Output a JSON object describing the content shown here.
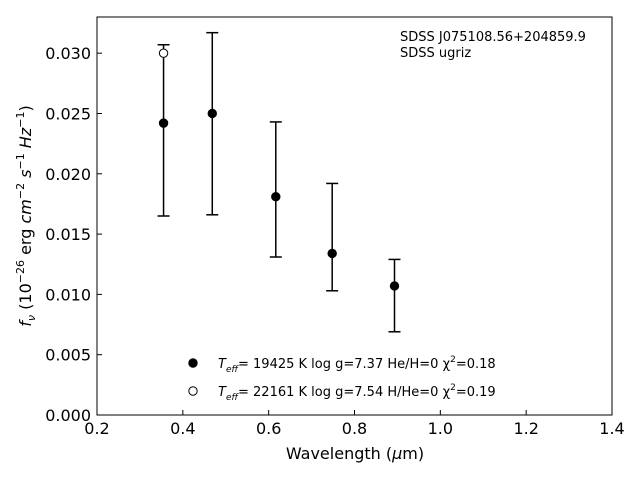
{
  "chart_data": {
    "type": "scatter",
    "xlabel": "Wavelength (μm)",
    "ylabel": "f_ν (10^-26 erg cm^-2 s^-1 Hz^-1)",
    "xlim": [
      0.2,
      1.4
    ],
    "ylim": [
      0.0,
      0.033
    ],
    "x_ticks": [
      0.2,
      0.4,
      0.6,
      0.8,
      1.0,
      1.2,
      1.4
    ],
    "x_tick_labels": [
      "0.2",
      "0.4",
      "0.6",
      "0.8",
      "1.0",
      "1.2",
      "1.4"
    ],
    "y_ticks": [
      0.0,
      0.005,
      0.01,
      0.015,
      0.02,
      0.025,
      0.03
    ],
    "y_tick_labels": [
      "0.000",
      "0.005",
      "0.010",
      "0.015",
      "0.020",
      "0.025",
      "0.030"
    ],
    "annotation_lines": [
      "SDSS J075108.56+204859.9",
      "SDSS ugriz"
    ],
    "grid": false,
    "legend_position": "bottom-center",
    "observed": {
      "filters": [
        "u",
        "g",
        "r",
        "i",
        "z"
      ],
      "x": [
        0.3551,
        0.4686,
        0.6166,
        0.748,
        0.8932
      ],
      "y": [
        0.0305,
        0.0243,
        0.0187,
        0.0147,
        0.0099
      ],
      "yerr_lower": [
        0.014,
        0.0077,
        0.0056,
        0.0044,
        0.003
      ],
      "yerr_upper": [
        0.0002,
        0.0074,
        0.0056,
        0.0045,
        0.003
      ]
    },
    "series": [
      {
        "marker": "filled-circle",
        "legend_parts": [
          "T",
          "eff",
          "= 19425 K  log g=7.37  He/H=0  χ",
          "2",
          "=0.18"
        ],
        "x": [
          0.3551,
          0.4686,
          0.6166,
          0.748,
          0.8932
        ],
        "y": [
          0.0242,
          0.025,
          0.0181,
          0.0134,
          0.0107
        ]
      },
      {
        "marker": "open-circle",
        "legend_parts": [
          "T",
          "eff",
          "= 22161 K  log g=7.54  H/He=0  χ",
          "2",
          "=0.19"
        ],
        "x": [
          0.3551
        ],
        "y": [
          0.03
        ]
      }
    ]
  }
}
